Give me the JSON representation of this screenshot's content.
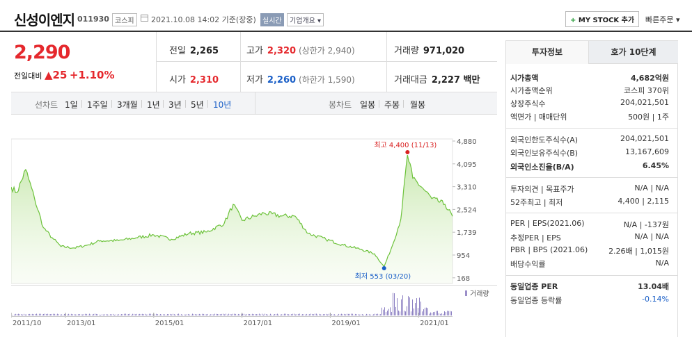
{
  "header": {
    "name": "신성이엔지",
    "code": "011930",
    "market": "코스피",
    "date": "2021.10.08 14:02 기준(장중)",
    "realtime": "실시간",
    "company_info": "기업개요 ▾",
    "mystock": "MY STOCK 추가",
    "quick_order": "빠른주문 ▾"
  },
  "price": {
    "current": "2,290",
    "diff_label": "전일대비",
    "diff": "▲25",
    "rate": "+1.10%"
  },
  "quote": {
    "prev_label": "전일",
    "prev": "2,265",
    "high_label": "고가",
    "high": "2,320",
    "upper_limit": "(상한가 2,940)",
    "volume_label": "거래량",
    "volume": "971,020",
    "open_label": "시가",
    "open": "2,310",
    "low_label": "저가",
    "low": "2,260",
    "lower_limit": "(하한가 1,590)",
    "amount_label": "거래대금",
    "amount": "2,227 백만"
  },
  "periods": {
    "line_label": "선차트",
    "line": [
      "1일",
      "1주일",
      "3개월",
      "1년",
      "3년",
      "5년",
      "10년"
    ],
    "candle_label": "봉차트",
    "candle": [
      "일봉",
      "주봉",
      "월봉"
    ]
  },
  "chart_data": {
    "type": "area",
    "yticks": [
      "4,880",
      "4,095",
      "3,310",
      "2,524",
      "1,739",
      "954",
      "168"
    ],
    "xticks": [
      "2011/10",
      "2013/01",
      "2015/01",
      "2017/01",
      "2019/01",
      "2021/01"
    ],
    "annotations": {
      "max": "최고 4,400 (11/13)",
      "min": "최저 553 (03/20)"
    },
    "volume_label": "거래량",
    "ylim": [
      168,
      4880
    ],
    "x": [
      2011.77,
      2011.9,
      2012.1,
      2012.3,
      2012.5,
      2012.7,
      2012.9,
      2013.2,
      2013.5,
      2013.8,
      2014.2,
      2014.6,
      2015.0,
      2015.4,
      2015.8,
      2016.2,
      2016.6,
      2016.8,
      2017.0,
      2017.3,
      2017.5,
      2017.9,
      2018.2,
      2018.5,
      2018.9,
      2019.3,
      2019.7,
      2020.0,
      2020.22,
      2020.4,
      2020.6,
      2020.75,
      2020.87,
      2021.1,
      2021.3,
      2021.6,
      2021.77
    ],
    "values": [
      3300,
      3100,
      3900,
      2900,
      1900,
      1550,
      1250,
      1200,
      1300,
      1450,
      1450,
      1550,
      1650,
      1500,
      1700,
      1750,
      2050,
      2700,
      2150,
      2300,
      2400,
      2300,
      2300,
      1700,
      1500,
      1300,
      1150,
      1000,
      553,
      1250,
      2200,
      4400,
      3600,
      3250,
      2900,
      2700,
      2290
    ]
  },
  "panel": {
    "tab_info": "투자정보",
    "tab_quote": "호가 10단계",
    "sections": [
      [
        {
          "label": "시가총액",
          "value": "4,682억원",
          "bold": true
        },
        {
          "label": "시가총액순위",
          "value": "코스피 370위"
        },
        {
          "label": "상장주식수",
          "value": "204,021,501"
        },
        {
          "label": "액면가 | 매매단위",
          "value": "500원 | 1주"
        }
      ],
      [
        {
          "label": "외국인한도주식수(A)",
          "value": "204,021,501"
        },
        {
          "label": "외국인보유주식수(B)",
          "value": "13,167,609"
        },
        {
          "label": "외국인소진율(B/A)",
          "value": "6.45%",
          "bold": true
        }
      ],
      [
        {
          "label": "투자의견 | 목표주가",
          "value": "N/A | N/A"
        },
        {
          "label": "52주최고 | 최저",
          "value": "4,400 | 2,115"
        }
      ],
      [
        {
          "label": "PER | EPS(2021.06)",
          "value": "N/A | -137원"
        },
        {
          "label": "추정PER | EPS",
          "value": "N/A | N/A"
        },
        {
          "label": "PBR | BPS (2021.06)",
          "value": "2.26배 | 1,015원"
        },
        {
          "label": "배당수익률",
          "value": "N/A"
        }
      ],
      [
        {
          "label": "동일업종 PER",
          "value": "13.04배",
          "bold": true
        },
        {
          "label": "동일업종 등락률",
          "value": "-0.14%",
          "blue": true
        }
      ]
    ]
  }
}
